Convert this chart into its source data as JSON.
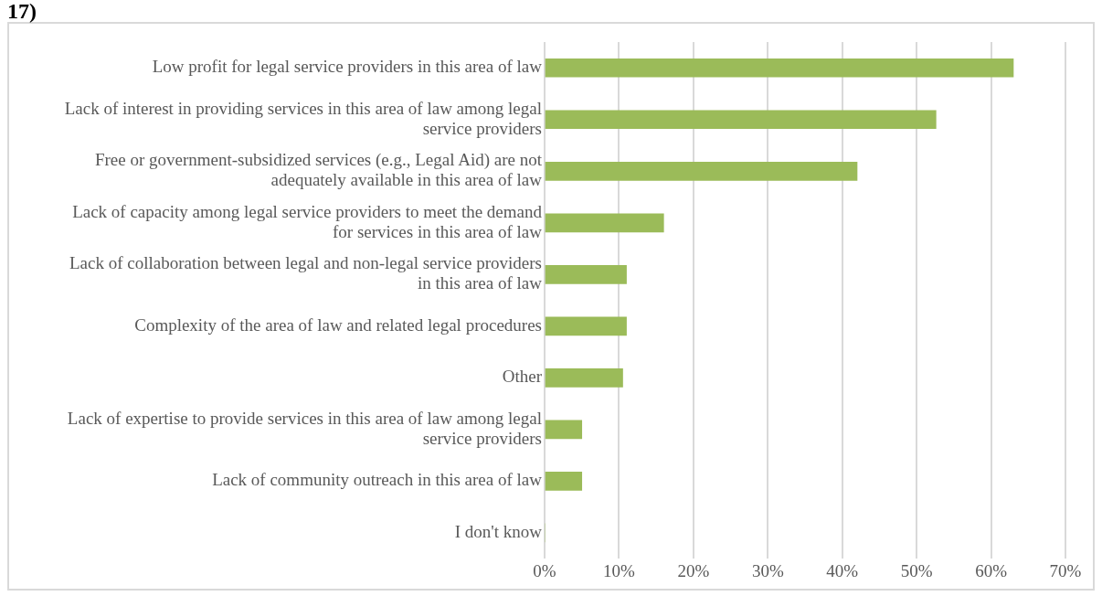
{
  "chart_data": {
    "type": "bar",
    "orientation": "horizontal",
    "title": "17)",
    "categories": [
      "Low profit for legal service providers in this area of law",
      "Lack of interest in providing services in this area of law among legal service providers",
      "Free or government-subsidized services (e.g., Legal Aid) are not adequately available in this area of law",
      "Lack of capacity among legal service providers to meet the demand for services in this area of law",
      "Lack of collaboration between legal and non-legal service providers in this area of law",
      "Complexity of the area of law and related legal procedures",
      "Other",
      "Lack of expertise to provide services in this area of law among legal service providers",
      "Lack of community outreach in this area of law",
      "I don't know"
    ],
    "values": [
      63,
      52.6,
      42,
      16,
      11,
      11,
      10.5,
      5,
      5,
      0
    ],
    "color": "#9bbb59",
    "xlim": [
      0,
      70
    ],
    "xticks": [
      {
        "value": 0,
        "label": "0%"
      },
      {
        "value": 10,
        "label": "10%"
      },
      {
        "value": 20,
        "label": "20%"
      },
      {
        "value": 30,
        "label": "30%"
      },
      {
        "value": 40,
        "label": "40%"
      },
      {
        "value": 50,
        "label": "50%"
      },
      {
        "value": 60,
        "label": "60%"
      },
      {
        "value": 70,
        "label": "70%"
      }
    ],
    "grid": "x",
    "legend": false
  }
}
